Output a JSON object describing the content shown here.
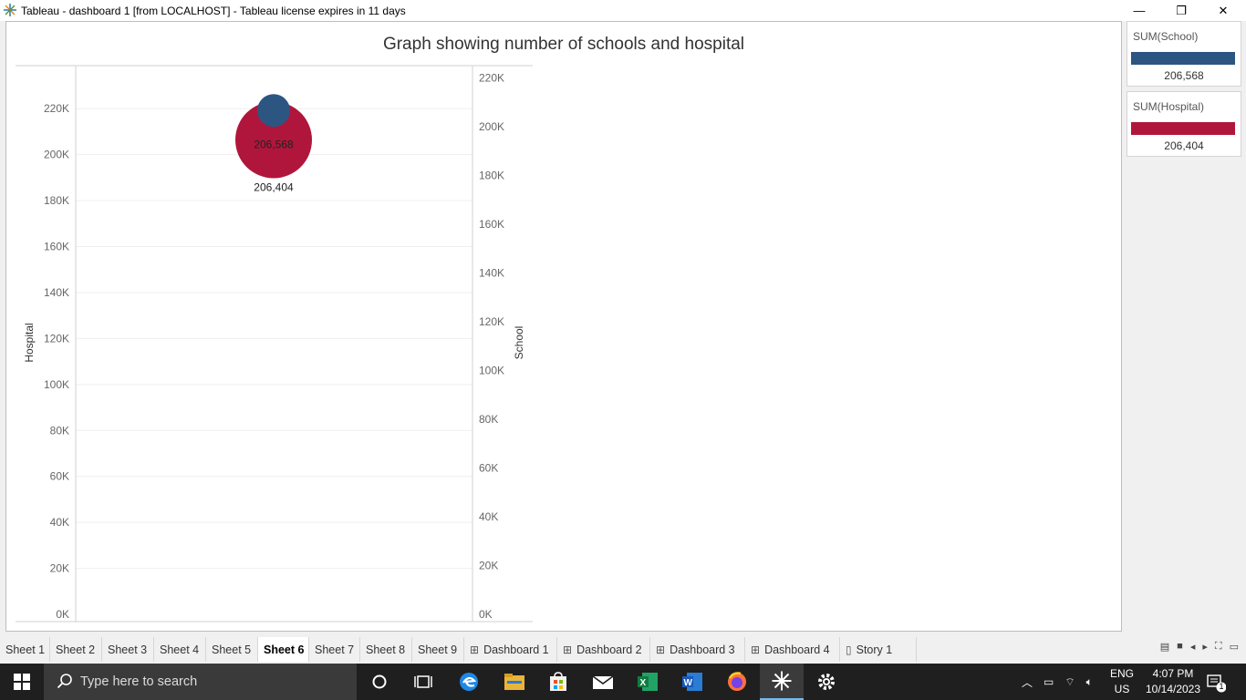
{
  "window": {
    "title": "Tableau - dashboard 1 [from LOCALHOST] - Tableau license expires in 11 days",
    "minimize": "—",
    "restore": "❐",
    "close": "✕"
  },
  "chart_data": {
    "type": "scatter",
    "title": "Graph showing number of schools and hospital",
    "left_axis": {
      "label": "Hospital",
      "ticks": [
        "0K",
        "20K",
        "40K",
        "60K",
        "80K",
        "100K",
        "120K",
        "140K",
        "160K",
        "180K",
        "200K",
        "220K"
      ],
      "range": [
        0,
        230000
      ]
    },
    "right_axis": {
      "label": "School",
      "ticks": [
        "0K",
        "20K",
        "40K",
        "60K",
        "80K",
        "100K",
        "120K",
        "140K",
        "160K",
        "180K",
        "200K",
        "220K"
      ],
      "range": [
        0,
        222000
      ]
    },
    "grid": true,
    "series": [
      {
        "name": "SUM(Hospital)",
        "value": 206404,
        "label": "206,404",
        "color": "#b0163b",
        "axis": "left",
        "size": "large"
      },
      {
        "name": "SUM(School)",
        "value": 206568,
        "label": "206,568",
        "color": "#2c5582",
        "axis": "right",
        "size": "small"
      }
    ]
  },
  "legend": [
    {
      "title": "SUM(School)",
      "value": "206,568",
      "color": "#2c5582"
    },
    {
      "title": "SUM(Hospital)",
      "value": "206,404",
      "color": "#b0163b"
    }
  ],
  "tabs": [
    {
      "label": "Sheet 1",
      "icon": ""
    },
    {
      "label": "Sheet 2",
      "icon": ""
    },
    {
      "label": "Sheet 3",
      "icon": ""
    },
    {
      "label": "Sheet 4",
      "icon": ""
    },
    {
      "label": "Sheet 5",
      "icon": ""
    },
    {
      "label": "Sheet 6",
      "icon": "",
      "active": true
    },
    {
      "label": "Sheet 7",
      "icon": ""
    },
    {
      "label": "Sheet 8",
      "icon": ""
    },
    {
      "label": "Sheet 9",
      "icon": ""
    },
    {
      "label": "Dashboard 1",
      "icon": "dashboard-icon"
    },
    {
      "label": "Dashboard 2",
      "icon": "dashboard-icon"
    },
    {
      "label": "Dashboard 3",
      "icon": "dashboard-icon"
    },
    {
      "label": "Dashboard 4",
      "icon": "dashboard-icon"
    },
    {
      "label": "Story 1",
      "icon": "story-icon"
    }
  ],
  "tab_tools": [
    "filmstrip-icon",
    "tabs-view-icon",
    "prev-icon",
    "next-icon",
    "fullscreen-icon",
    "presentation-icon"
  ],
  "taskbar": {
    "search_placeholder": "Type here to search",
    "apps": [
      "cortana-icon",
      "task-view-icon",
      "edge-icon",
      "file-explorer-icon",
      "store-icon",
      "mail-icon",
      "excel-icon",
      "word-icon",
      "firefox-icon",
      "tableau-icon",
      "settings-icon"
    ],
    "language": "ENG",
    "region": "US",
    "time": "4:07 PM",
    "date": "10/14/2023",
    "notifications": "1"
  }
}
